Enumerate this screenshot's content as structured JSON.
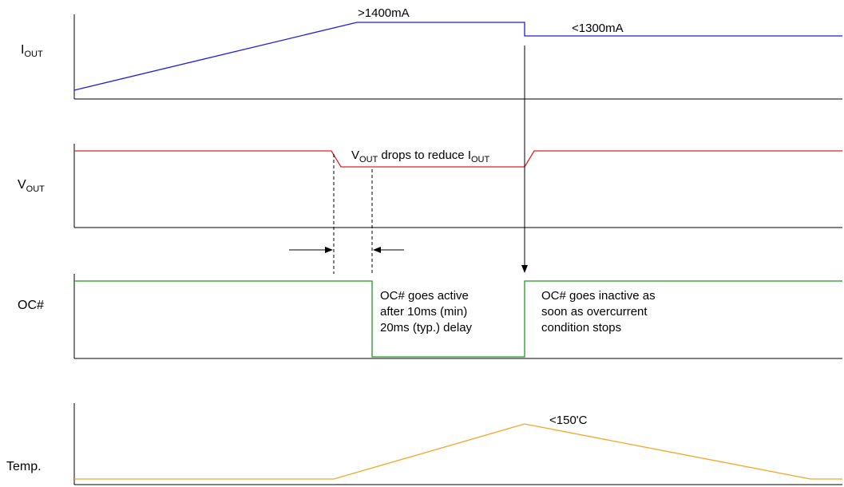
{
  "colors": {
    "iout": "#1f1fd6",
    "vout": "#e02020",
    "oc": "#1e9a1e",
    "temp": "#f5a623",
    "axis": "#000000"
  },
  "signals": {
    "iout": {
      "label_main": "I",
      "label_sub": "OUT"
    },
    "vout": {
      "label_main": "V",
      "label_sub": "OUT"
    },
    "oc": {
      "label": "OC#"
    },
    "temp": {
      "label": "Temp."
    }
  },
  "annotations": {
    "iout_high": ">1400mA",
    "iout_low": "<1300mA",
    "vout_drop": {
      "v": "V",
      "v_sub": "OUT",
      "mid": " drops to reduce I",
      "i_sub": "OUT"
    },
    "oc_active": [
      "OC# goes active",
      "after 10ms (min)",
      "20ms (typ.) delay"
    ],
    "oc_inactive": [
      "OC# goes inactive as",
      "soon as overcurrent",
      "condition stops"
    ],
    "temp_peak": "<150'C"
  }
}
